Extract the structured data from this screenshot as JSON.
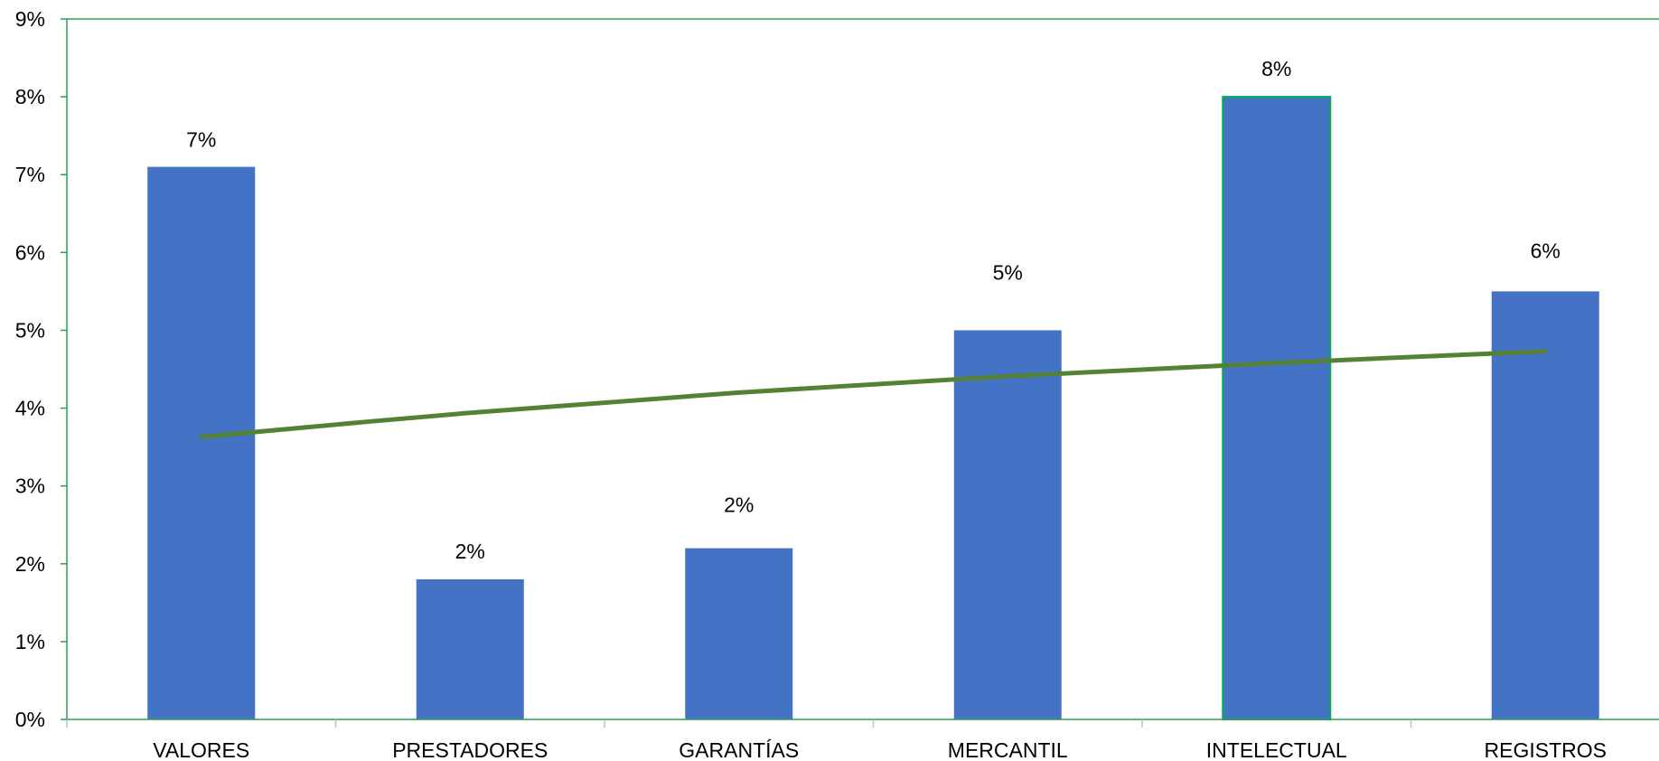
{
  "chart_data": {
    "type": "bar",
    "categories": [
      "VALORES",
      "PRESTADORES",
      "GARANTÍAS",
      "MERCANTIL",
      "INTELECTUAL",
      "REGISTROS"
    ],
    "values": [
      0.071,
      0.018,
      0.022,
      0.05,
      0.08,
      0.055
    ],
    "data_labels": [
      "7%",
      "2%",
      "2%",
      "5%",
      "8%",
      "6%"
    ],
    "ylim": [
      0,
      0.09
    ],
    "y_ticks": [
      0,
      0.01,
      0.02,
      0.03,
      0.04,
      0.05,
      0.06,
      0.07,
      0.08,
      0.09
    ],
    "y_tick_labels": [
      "0%",
      "1%",
      "2%",
      "3%",
      "4%",
      "5%",
      "6%",
      "7%",
      "8%",
      "9%"
    ],
    "title": "",
    "xlabel": "",
    "ylabel": "",
    "grid": false,
    "legend": "none",
    "trendline": {
      "type": "logarithmic",
      "values": [
        0.0363,
        0.0394,
        0.042,
        0.0441,
        0.0458,
        0.0473
      ]
    },
    "colors": {
      "bar": "#4472C4",
      "trendline": "#548235",
      "axis": "#2E9E4F",
      "highlight_border": "#00B050"
    },
    "highlighted_category": "INTELECTUAL"
  }
}
